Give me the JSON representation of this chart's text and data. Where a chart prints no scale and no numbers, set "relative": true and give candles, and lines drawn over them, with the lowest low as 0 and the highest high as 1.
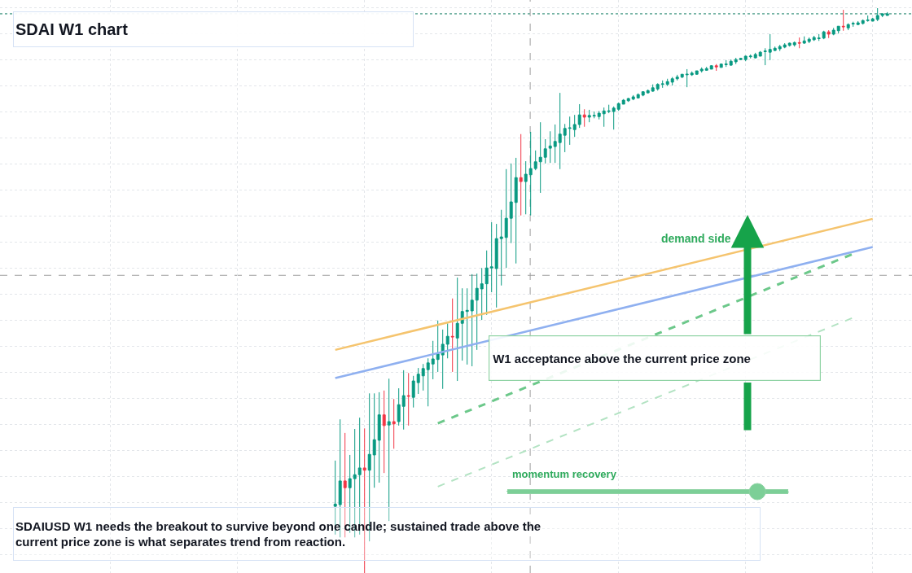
{
  "chart_data": {
    "type": "candlestick",
    "title": "SDAI W1 chart",
    "relative": true,
    "grid": true,
    "categories": [
      null,
      null,
      null,
      null,
      null,
      null,
      null,
      null,
      null,
      null,
      null,
      null,
      null,
      null,
      null,
      null,
      null,
      null,
      null,
      null,
      null,
      null,
      null,
      null,
      null,
      null,
      null,
      null,
      null,
      null,
      null,
      null,
      null,
      null,
      null,
      null,
      null,
      null,
      null,
      null,
      null,
      null,
      null,
      null,
      null,
      null,
      null,
      null,
      null,
      null,
      null,
      null,
      null,
      null,
      null,
      null,
      null,
      null,
      null,
      null,
      null,
      null,
      null,
      null,
      null,
      null,
      null,
      null,
      null,
      null,
      null,
      null,
      null,
      null,
      null,
      null,
      null,
      null,
      null,
      null,
      null,
      null,
      null,
      null,
      null,
      null,
      null,
      null,
      null,
      null,
      null,
      null,
      null,
      null,
      null,
      null,
      null,
      null,
      null,
      null,
      null,
      null,
      null,
      null,
      null,
      null,
      null,
      null,
      null,
      null,
      null,
      null,
      null,
      null
    ],
    "ohlc": [
      [
        0.118,
        0.199,
        0.068,
        0.122
      ],
      [
        0.121,
        0.272,
        0.063,
        0.163
      ],
      [
        0.163,
        0.248,
        0.063,
        0.151
      ],
      [
        0.151,
        0.209,
        0.071,
        0.167
      ],
      [
        0.167,
        0.255,
        0.063,
        0.174
      ],
      [
        0.174,
        0.275,
        0.068,
        0.186
      ],
      [
        0.186,
        0.256,
        0,
        0.182
      ],
      [
        0.182,
        0.318,
        0.056,
        0.21
      ],
      [
        0.209,
        0.318,
        0.151,
        0.236
      ],
      [
        0.235,
        0.32,
        0.16,
        0.28
      ],
      [
        0.28,
        0.323,
        0.177,
        0.261
      ],
      [
        0.262,
        0.344,
        0.092,
        0.268
      ],
      [
        0.268,
        0.308,
        0.22,
        0.264
      ],
      [
        0.268,
        0.327,
        0.261,
        0.298
      ],
      [
        0.295,
        0.359,
        0.254,
        0.314
      ],
      [
        0.314,
        0.354,
        0.261,
        0.313
      ],
      [
        0.311,
        0.349,
        0.293,
        0.34
      ],
      [
        0.337,
        0.363,
        0.317,
        0.352
      ],
      [
        0.349,
        0.37,
        0.323,
        0.362
      ],
      [
        0.36,
        0.38,
        0.295,
        0.372
      ],
      [
        0.37,
        0.411,
        0.343,
        0.379
      ],
      [
        0.378,
        0.447,
        0.356,
        0.388
      ],
      [
        0.386,
        0.431,
        0.326,
        0.405
      ],
      [
        0.405,
        0.442,
        0.38,
        0.419
      ],
      [
        0.419,
        0.486,
        0.356,
        0.418
      ],
      [
        0.416,
        0.523,
        0.34,
        0.442
      ],
      [
        0.442,
        0.504,
        0.376,
        0.463
      ],
      [
        0.463,
        0.504,
        0.369,
        0.465
      ],
      [
        0.464,
        0.529,
        0.366,
        0.483
      ],
      [
        0.483,
        0.53,
        0.395,
        0.504
      ],
      [
        0.503,
        0.54,
        0.448,
        0.512
      ],
      [
        0.512,
        0.571,
        0.457,
        0.54
      ],
      [
        0.54,
        0.621,
        0.497,
        0.542
      ],
      [
        0.539,
        0.618,
        0.47,
        0.592
      ],
      [
        0.592,
        0.643,
        0.509,
        0.595
      ],
      [
        0.594,
        0.715,
        0.54,
        0.628
      ],
      [
        0.628,
        0.725,
        0.584,
        0.657
      ],
      [
        0.656,
        0.735,
        0.548,
        0.7
      ],
      [
        0.7,
        0.777,
        0.633,
        0.693
      ],
      [
        0.693,
        0.729,
        0.635,
        0.706
      ],
      [
        0.705,
        0.781,
        0.633,
        0.716
      ],
      [
        0.716,
        0.748,
        0.713,
        0.728
      ],
      [
        0.728,
        0.798,
        0.673,
        0.736
      ],
      [
        0.736,
        0.768,
        0.725,
        0.751
      ],
      [
        0.752,
        0.782,
        0.726,
        0.756
      ],
      [
        0.755,
        0.794,
        0.726,
        0.764
      ],
      [
        0.762,
        0.85,
        0.715,
        0.777
      ],
      [
        0.775,
        0.795,
        0.745,
        0.787
      ],
      [
        0.787,
        0.808,
        0.758,
        0.788
      ],
      [
        0.785,
        0.811,
        0.772,
        0.794
      ],
      [
        0.794,
        0.83,
        0.788,
        0.811
      ],
      [
        0.811,
        0.821,
        0.79,
        0.807
      ],
      [
        0.807,
        0.82,
        0.798,
        0.81
      ],
      [
        0.809,
        0.817,
        0.805,
        0.81
      ],
      [
        0.808,
        0.818,
        0.803,
        0.814
      ],
      [
        0.813,
        0.824,
        0.79,
        0.818
      ],
      [
        0.817,
        0.829,
        0.814,
        0.818
      ],
      [
        0.817,
        0.826,
        0.785,
        0.823
      ],
      [
        0.821,
        0.833,
        0.818,
        0.831
      ],
      [
        0.83,
        0.839,
        0.83,
        0.837
      ],
      [
        0.836,
        0.841,
        0.834,
        0.84
      ],
      [
        0.839,
        0.846,
        0.837,
        0.843
      ],
      [
        0.841,
        0.849,
        0.84,
        0.847
      ],
      [
        0.846,
        0.853,
        0.844,
        0.852
      ],
      [
        0.85,
        0.856,
        0.849,
        0.854
      ],
      [
        0.853,
        0.865,
        0.852,
        0.859
      ],
      [
        0.857,
        0.867,
        0.854,
        0.865
      ],
      [
        0.865,
        0.872,
        0.859,
        0.866
      ],
      [
        0.865,
        0.875,
        0.862,
        0.87
      ],
      [
        0.869,
        0.878,
        0.863,
        0.875
      ],
      [
        0.875,
        0.882,
        0.872,
        0.878
      ],
      [
        0.878,
        0.883,
        0.876,
        0.883
      ],
      [
        0.882,
        0.892,
        0.86,
        0.883
      ],
      [
        0.882,
        0.888,
        0.88,
        0.885
      ],
      [
        0.883,
        0.889,
        0.882,
        0.889
      ],
      [
        0.889,
        0.895,
        0.886,
        0.892
      ],
      [
        0.89,
        0.896,
        0.889,
        0.893
      ],
      [
        0.892,
        0.899,
        0.892,
        0.898
      ],
      [
        0.898,
        0.901,
        0.889,
        0.896
      ],
      [
        0.895,
        0.902,
        0.895,
        0.901
      ],
      [
        0.9,
        0.908,
        0.896,
        0.901
      ],
      [
        0.899,
        0.909,
        0.898,
        0.906
      ],
      [
        0.905,
        0.912,
        0.901,
        0.909
      ],
      [
        0.909,
        0.912,
        0.908,
        0.911
      ],
      [
        0.909,
        0.916,
        0.906,
        0.915
      ],
      [
        0.914,
        0.918,
        0.911,
        0.915
      ],
      [
        0.912,
        0.921,
        0.911,
        0.918
      ],
      [
        0.915,
        0.924,
        0.915,
        0.922
      ],
      [
        0.923,
        0.929,
        0.899,
        0.924
      ],
      [
        0.922,
        0.954,
        0.908,
        0.927
      ],
      [
        0.925,
        0.932,
        0.924,
        0.929
      ],
      [
        0.928,
        0.935,
        0.924,
        0.932
      ],
      [
        0.931,
        0.938,
        0.929,
        0.935
      ],
      [
        0.934,
        0.939,
        0.932,
        0.938
      ],
      [
        0.935,
        0.941,
        0.932,
        0.939
      ],
      [
        0.939,
        0.948,
        0.929,
        0.938
      ],
      [
        0.938,
        0.95,
        0.937,
        0.942
      ],
      [
        0.941,
        0.948,
        0.938,
        0.945
      ],
      [
        0.944,
        0.951,
        0.942,
        0.948
      ],
      [
        0.946,
        0.954,
        0.942,
        0.947
      ],
      [
        0.947,
        0.96,
        0.945,
        0.958
      ],
      [
        0.958,
        0.961,
        0.947,
        0.954
      ],
      [
        0.954,
        0.965,
        0.952,
        0.961
      ],
      [
        0.96,
        0.968,
        0.955,
        0.968
      ],
      [
        0.968,
        0.997,
        0.96,
        0.967
      ],
      [
        0.965,
        0.973,
        0.961,
        0.971
      ],
      [
        0.972,
        0.976,
        0.967,
        0.973
      ],
      [
        0.971,
        0.977,
        0.97,
        0.974
      ],
      [
        0.973,
        0.98,
        0.971,
        0.978
      ],
      [
        0.978,
        0.987,
        0.976,
        0.979
      ],
      [
        0.977,
        0.983,
        0.977,
        0.981
      ],
      [
        0.98,
        1,
        0.977,
        0.987
      ],
      [
        0.987,
        0.991,
        0.984,
        0.99
      ],
      [
        0.987,
        0.993,
        0.987,
        0.99
      ]
    ],
    "series": [
      {
        "type": "line",
        "color": "#f5c46e",
        "values": [
          0.395,
          null,
          null,
          null,
          null,
          null,
          null,
          null,
          null,
          null,
          null,
          null,
          null,
          null,
          null,
          null,
          null,
          null,
          null,
          null,
          null,
          null,
          null,
          null,
          null,
          null,
          null,
          null,
          null,
          null,
          null,
          null,
          null,
          null,
          null,
          null,
          null,
          null,
          null,
          null,
          null,
          null,
          null,
          null,
          null,
          null,
          null,
          null,
          null,
          null,
          null,
          null,
          null,
          null,
          null,
          null,
          null,
          null,
          null,
          null,
          null,
          null,
          null,
          null,
          null,
          null,
          null,
          null,
          null,
          null,
          null,
          null,
          null,
          null,
          null,
          null,
          null,
          null,
          null,
          null,
          null,
          null,
          null,
          null,
          null,
          null,
          null,
          null,
          null,
          null,
          null,
          null,
          null,
          null,
          null,
          null,
          null,
          null,
          null,
          null,
          null,
          null,
          null,
          null,
          null,
          null,
          null,
          null,
          null,
          null,
          0.627,
          null,
          null,
          null
        ]
      },
      {
        "type": "line",
        "color": "#8fb0f0",
        "values": [
          0.345,
          null,
          null,
          null,
          null,
          null,
          null,
          null,
          null,
          null,
          null,
          null,
          null,
          null,
          null,
          null,
          null,
          null,
          null,
          null,
          null,
          null,
          null,
          null,
          null,
          null,
          null,
          null,
          null,
          null,
          null,
          null,
          null,
          null,
          null,
          null,
          null,
          null,
          null,
          null,
          null,
          null,
          null,
          null,
          null,
          null,
          null,
          null,
          null,
          null,
          null,
          null,
          null,
          null,
          null,
          null,
          null,
          null,
          null,
          null,
          null,
          null,
          null,
          null,
          null,
          null,
          null,
          null,
          null,
          null,
          null,
          null,
          null,
          null,
          null,
          null,
          null,
          null,
          null,
          null,
          null,
          null,
          null,
          null,
          null,
          null,
          null,
          null,
          null,
          null,
          null,
          null,
          null,
          null,
          null,
          null,
          null,
          null,
          null,
          null,
          null,
          null,
          null,
          null,
          null,
          null,
          null,
          null,
          null,
          null,
          0.577,
          null,
          null,
          null
        ]
      },
      {
        "type": "line",
        "color": "#6cc88a",
        "line_style": "dashed",
        "values": [
          null,
          null,
          null,
          null,
          null,
          null,
          null,
          null,
          null,
          null,
          null,
          null,
          null,
          null,
          null,
          null,
          null,
          null,
          null,
          null,
          null,
          0.265,
          null,
          null,
          null,
          null,
          null,
          null,
          null,
          null,
          null,
          null,
          null,
          null,
          null,
          null,
          null,
          null,
          null,
          null,
          null,
          null,
          null,
          null,
          null,
          null,
          null,
          null,
          null,
          null,
          null,
          null,
          null,
          null,
          null,
          null,
          null,
          null,
          null,
          null,
          null,
          null,
          null,
          null,
          null,
          null,
          null,
          null,
          null,
          null,
          null,
          null,
          null,
          null,
          null,
          null,
          null,
          null,
          null,
          null,
          null,
          null,
          null,
          null,
          null,
          null,
          null,
          null,
          null,
          null,
          null,
          null,
          null,
          null,
          null,
          null,
          null,
          null,
          null,
          null,
          null,
          null,
          null,
          null,
          null,
          null,
          0.565,
          null,
          null,
          null,
          null,
          null,
          null,
          null
        ]
      },
      {
        "type": "line",
        "color": "#b3e3c3",
        "line_style": "dashed",
        "values": [
          null,
          null,
          null,
          null,
          null,
          null,
          null,
          null,
          null,
          null,
          null,
          null,
          null,
          null,
          null,
          null,
          null,
          null,
          null,
          null,
          null,
          0.153,
          null,
          null,
          null,
          null,
          null,
          null,
          null,
          null,
          null,
          null,
          null,
          null,
          null,
          null,
          null,
          null,
          null,
          null,
          null,
          null,
          null,
          null,
          null,
          null,
          null,
          null,
          null,
          null,
          null,
          null,
          null,
          null,
          null,
          null,
          null,
          null,
          null,
          null,
          null,
          null,
          null,
          null,
          null,
          null,
          null,
          null,
          null,
          null,
          null,
          null,
          null,
          null,
          null,
          null,
          null,
          null,
          null,
          null,
          null,
          null,
          null,
          null,
          null,
          null,
          null,
          null,
          null,
          null,
          null,
          null,
          null,
          null,
          null,
          null,
          null,
          null,
          null,
          null,
          null,
          null,
          null,
          null,
          null,
          null,
          0.452,
          null,
          null,
          null,
          null,
          null,
          null,
          null
        ]
      }
    ],
    "ref_lines": [
      {
        "axis": "y",
        "value": 0.527,
        "color": "#9e9e9e",
        "line_style": "dashed"
      },
      {
        "axis": "y",
        "value": 0.99,
        "color": "#0b7a5f",
        "line_style": "dotted"
      }
    ],
    "annotations": [
      "W1 acceptance above the current price zone",
      "demand side",
      "momentum recovery",
      "SDAIUSD W1 needs the breakout to survive beyond one candle; sustained trade above the current price zone is what separates trend from reaction."
    ]
  }
}
